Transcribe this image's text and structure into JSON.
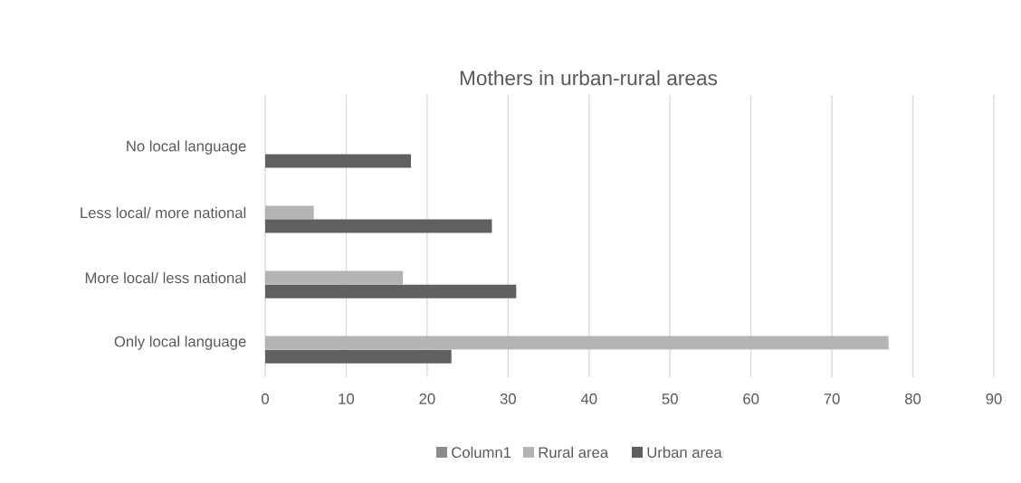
{
  "chart_data": {
    "type": "bar",
    "orientation": "horizontal",
    "title": "Mothers in urban-rural areas",
    "categories": [
      "No local language",
      "Less local/ more national",
      "More local/ less national",
      "Only local language"
    ],
    "series": [
      {
        "name": "Column1",
        "color": "#8c8c8c",
        "values": [
          null,
          null,
          null,
          null
        ]
      },
      {
        "name": "Rural area",
        "color": "#b4b4b4",
        "values": [
          null,
          6,
          17,
          77
        ]
      },
      {
        "name": "Urban area",
        "color": "#606060",
        "values": [
          18,
          28,
          31,
          23
        ]
      }
    ],
    "xlim": [
      0,
      90
    ],
    "xticks": [
      0,
      10,
      20,
      30,
      40,
      50,
      60,
      70,
      80,
      90
    ],
    "grid": "x",
    "legend": "bottom"
  }
}
